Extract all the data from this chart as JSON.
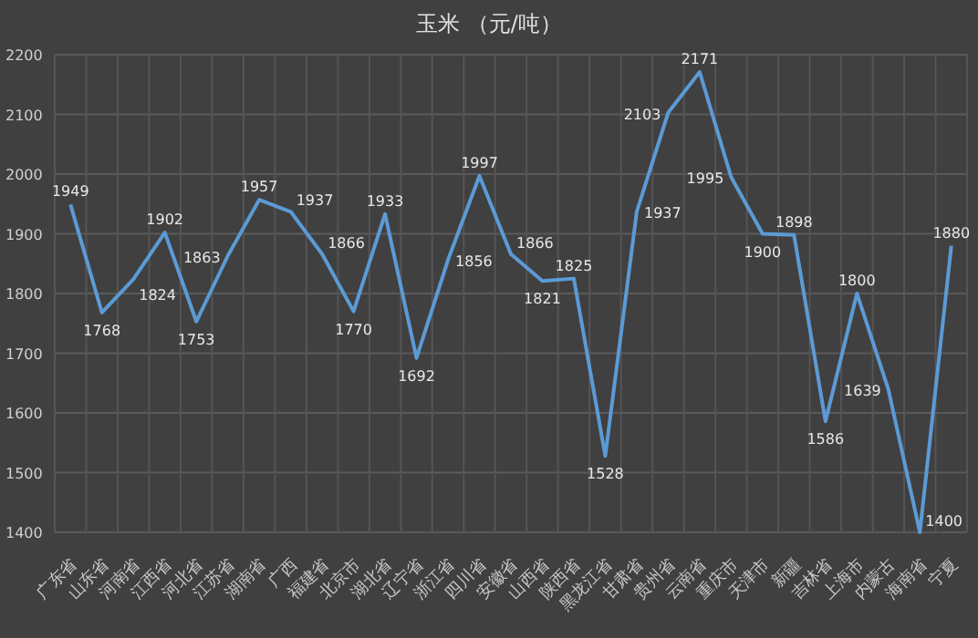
{
  "chart_data": {
    "type": "line",
    "title": "玉米    （元/吨）",
    "categories": [
      "广东省",
      "山东省",
      "河南省",
      "江西省",
      "河北省",
      "江苏省",
      "湖南省",
      "广西",
      "福建省",
      "北京市",
      "湖北省",
      "辽宁省",
      "浙江省",
      "四川省",
      "安徽省",
      "山西省",
      "陕西省",
      "黑龙江省",
      "甘肃省",
      "贵州省",
      "云南省",
      "重庆市",
      "天津市",
      "新疆",
      "吉林省",
      "上海市",
      "内蒙古",
      "海南省",
      "宁夏"
    ],
    "series": [
      {
        "color": "#5b9bd5",
        "values": [
          1949,
          1768,
          1824,
          1902,
          1753,
          1863,
          1957,
          1937,
          1866,
          1770,
          1933,
          1692,
          1856,
          1997,
          1866,
          1821,
          1825,
          1528,
          1937,
          2103,
          2171,
          1995,
          1900,
          1898,
          1586,
          1800,
          1639,
          1400,
          1880
        ]
      }
    ],
    "ylim": [
      1400,
      2200
    ],
    "yticks": [
      1400,
      1500,
      1600,
      1700,
      1800,
      1900,
      2000,
      2100,
      2200
    ],
    "grid": true,
    "data_labels": true,
    "marker": "none",
    "line_style": "solid"
  }
}
